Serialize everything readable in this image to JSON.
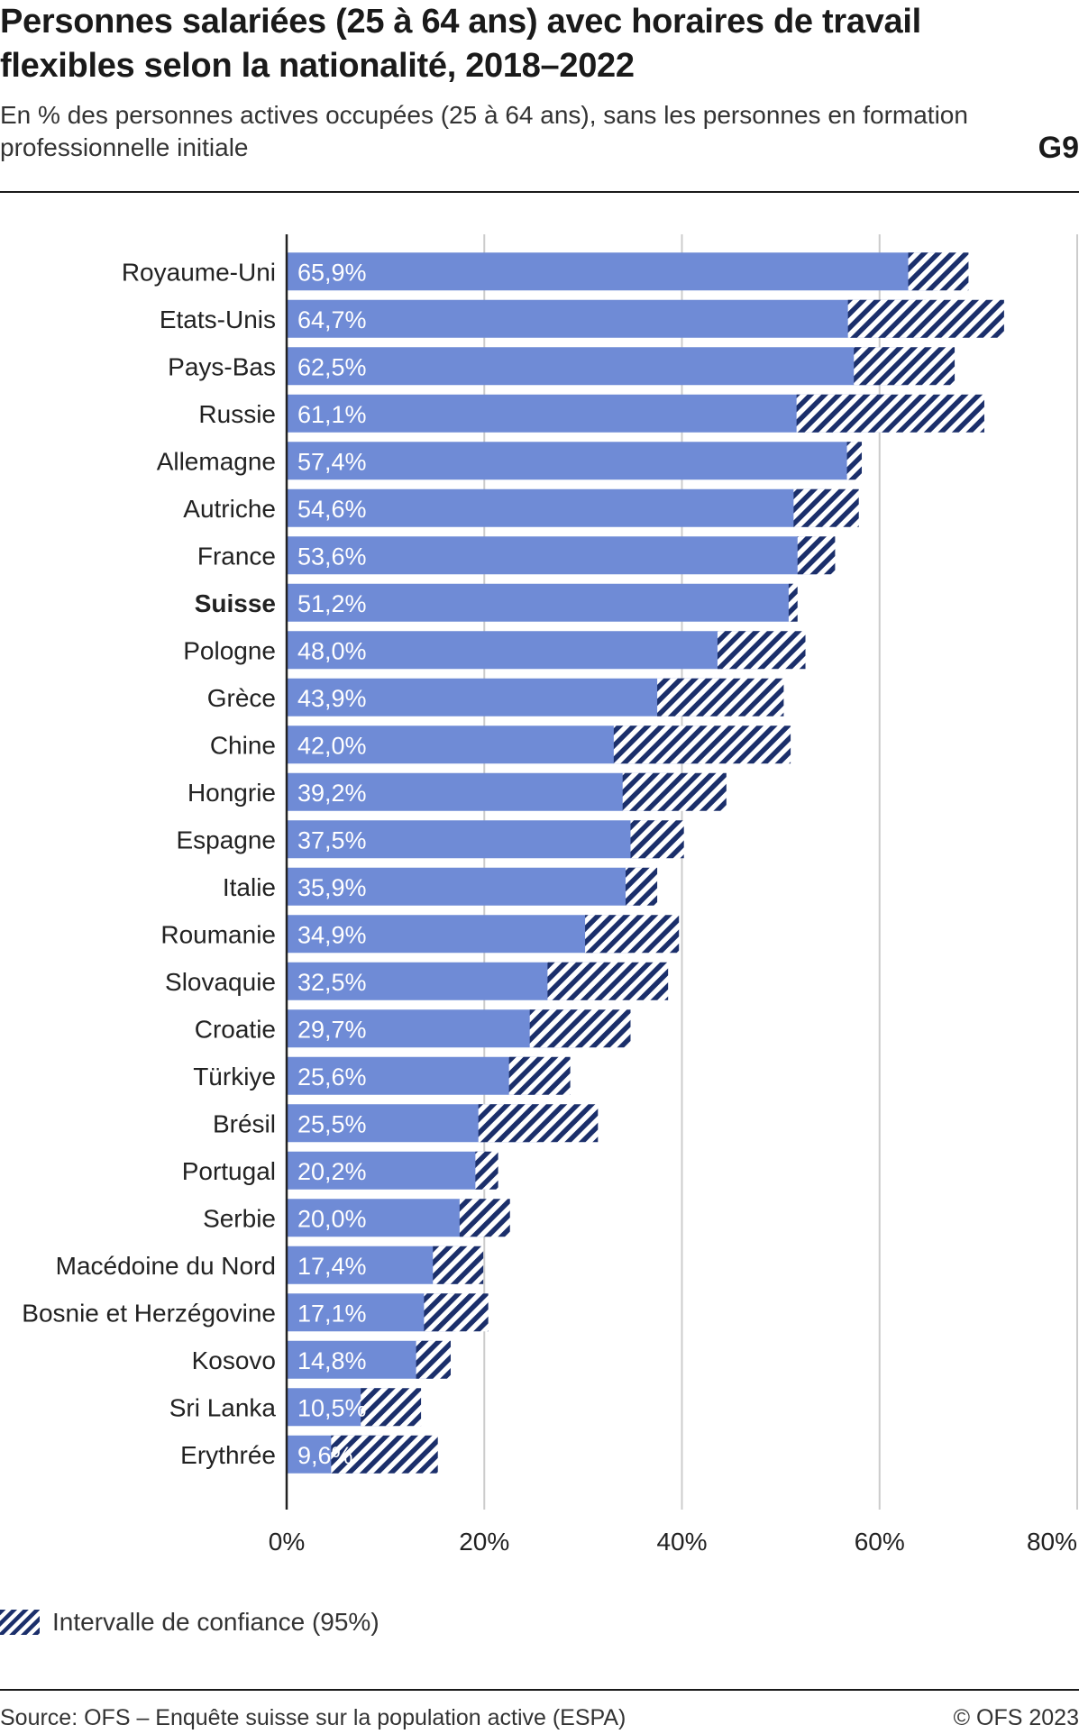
{
  "header": {
    "title": "Personnes salariées (25 à 64 ans) avec horaires de travail flexibles selon la nationalité, 2018–2022",
    "subtitle": "En % des personnes actives occupées (25 à 64 ans), sans les personnes en formation professionnelle initiale",
    "graph_number": "G9"
  },
  "legend": {
    "ci_label": "Intervalle de confiance (95%)"
  },
  "footer": {
    "source": "Source: OFS – Enquête suisse sur la population active (ESPA)",
    "copyright": "© OFS 2023"
  },
  "colors": {
    "bar": "#6f8bd6",
    "ci": "#1b2f6b",
    "grid": "#cccccc",
    "axis": "#222222"
  },
  "chart_data": {
    "type": "bar",
    "orientation": "horizontal",
    "xlim": [
      0,
      80
    ],
    "xticks": [
      0,
      20,
      40,
      60,
      80
    ],
    "xtick_labels": [
      "0%",
      "20%",
      "40%",
      "60%",
      "80%"
    ],
    "grid": true,
    "categories": [
      "Royaume-Uni",
      "Etats-Unis",
      "Pays-Bas",
      "Russie",
      "Allemagne",
      "Autriche",
      "France",
      "Suisse",
      "Pologne",
      "Grèce",
      "Chine",
      "Hongrie",
      "Espagne",
      "Italie",
      "Roumanie",
      "Slovaquie",
      "Croatie",
      "Türkiye",
      "Brésil",
      "Portugal",
      "Serbie",
      "Macédoine du Nord",
      "Bosnie et Herzégovine",
      "Kosovo",
      "Sri Lanka",
      "Erythrée"
    ],
    "highlight": "Suisse",
    "values": [
      65.9,
      64.7,
      62.5,
      61.1,
      57.4,
      54.6,
      53.6,
      51.2,
      48.0,
      43.9,
      42.0,
      39.2,
      37.5,
      35.9,
      34.9,
      32.5,
      29.7,
      25.6,
      25.5,
      20.2,
      20.0,
      17.4,
      17.1,
      14.8,
      10.5,
      9.6
    ],
    "value_labels": [
      "65,9%",
      "64,7%",
      "62,5%",
      "61,1%",
      "57,4%",
      "54,6%",
      "53,6%",
      "51,2%",
      "48,0%",
      "43,9%",
      "42,0%",
      "39,2%",
      "37,5%",
      "35,9%",
      "34,9%",
      "32,5%",
      "29,7%",
      "25,6%",
      "25,5%",
      "20,2%",
      "20,0%",
      "17,4%",
      "17,1%",
      "14,8%",
      "10,5%",
      "9,6%"
    ],
    "ci_low": [
      62.9,
      56.8,
      57.4,
      51.6,
      56.7,
      51.3,
      51.7,
      50.8,
      43.6,
      37.5,
      33.1,
      34.0,
      34.8,
      34.3,
      30.2,
      26.4,
      24.6,
      22.5,
      19.4,
      19.1,
      17.5,
      14.8,
      13.9,
      13.1,
      7.5,
      4.5
    ],
    "ci_high": [
      69.0,
      72.6,
      67.6,
      70.6,
      58.2,
      57.9,
      55.5,
      51.7,
      52.5,
      50.3,
      51.0,
      44.5,
      40.2,
      37.5,
      39.7,
      38.6,
      34.8,
      28.7,
      31.5,
      21.4,
      22.6,
      19.9,
      20.4,
      16.6,
      13.6,
      15.3
    ]
  }
}
